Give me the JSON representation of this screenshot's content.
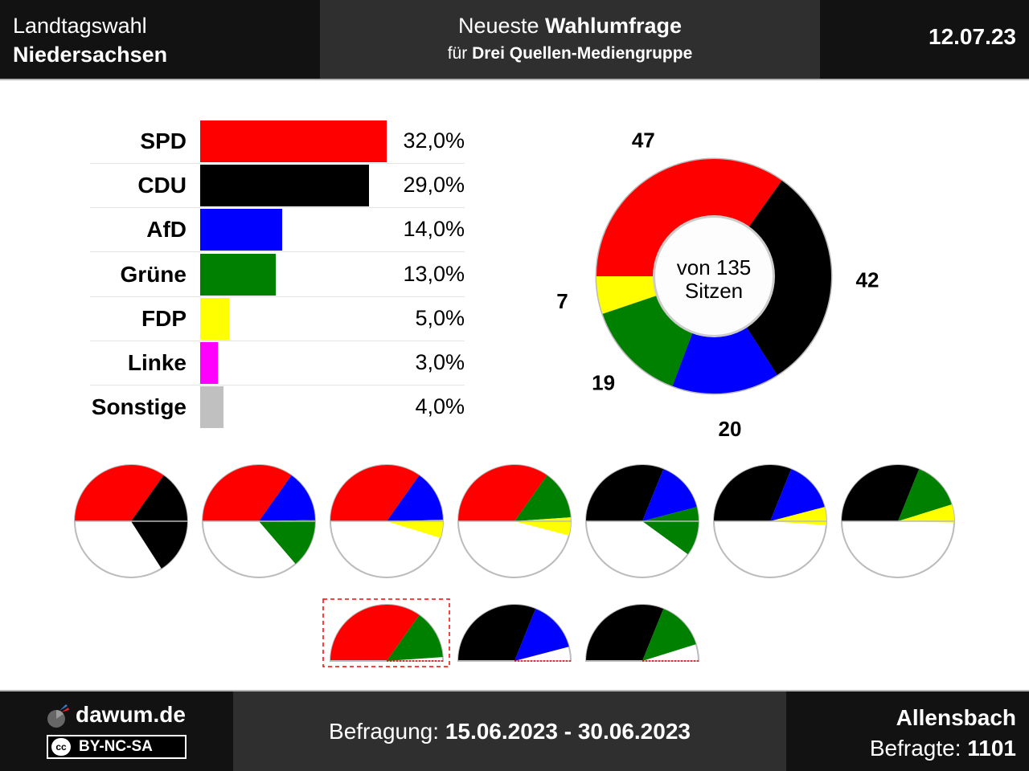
{
  "header": {
    "title_line1": "Landtagswahl",
    "title_line2": "Niedersachsen",
    "subtitle_prefix": "Neueste ",
    "subtitle_bold": "Wahlumfrage",
    "client_prefix": "für ",
    "client_name": "Drei Quellen-Mediengruppe",
    "date": "12.07.23"
  },
  "chart_data": [
    {
      "type": "bar",
      "orientation": "horizontal",
      "categories": [
        "SPD",
        "CDU",
        "AfD",
        "Grüne",
        "FDP",
        "Linke",
        "Sonstige"
      ],
      "values": [
        32.0,
        29.0,
        14.0,
        13.0,
        5.0,
        3.0,
        4.0
      ],
      "value_labels": [
        "32,0%",
        "29,0%",
        "14,0%",
        "13,0%",
        "5,0%",
        "3,0%",
        "4,0%"
      ],
      "colors": [
        "#ff0000",
        "#000000",
        "#0000ff",
        "#008000",
        "#ffff00",
        "#ff00ff",
        "#c0c0c0"
      ],
      "xlim": [
        0,
        32
      ]
    },
    {
      "type": "pie",
      "style": "donut",
      "center_label_line1": "von 135",
      "center_label_line2": "Sitzen",
      "slices": [
        {
          "party": "SPD",
          "seats": 47,
          "color": "#ff0000"
        },
        {
          "party": "CDU",
          "seats": 42,
          "color": "#000000"
        },
        {
          "party": "AfD",
          "seats": 20,
          "color": "#0000ff"
        },
        {
          "party": "Grüne",
          "seats": 19,
          "color": "#008000"
        },
        {
          "party": "FDP",
          "seats": 7,
          "color": "#ffff00"
        }
      ],
      "total_seats": 135
    },
    {
      "type": "pie",
      "style": "coalition-semicircles",
      "rows": [
        [
          {
            "parties": [
              "SPD",
              "CDU"
            ],
            "full": true
          },
          {
            "parties": [
              "SPD",
              "AfD",
              "Grüne"
            ],
            "full": true
          },
          {
            "parties": [
              "SPD",
              "AfD",
              "FDP"
            ],
            "full": true
          },
          {
            "parties": [
              "SPD",
              "Grüne",
              "FDP"
            ],
            "full": true
          },
          {
            "parties": [
              "CDU",
              "AfD",
              "Grüne"
            ],
            "full": true
          },
          {
            "parties": [
              "CDU",
              "AfD",
              "FDP"
            ],
            "full": true
          },
          {
            "parties": [
              "CDU",
              "Grüne",
              "FDP"
            ],
            "full": true
          }
        ],
        [
          {
            "parties": [
              "SPD",
              "Grüne"
            ],
            "full": false,
            "highlighted": true
          },
          {
            "parties": [
              "CDU",
              "AfD"
            ],
            "full": false,
            "highlighted": false
          },
          {
            "parties": [
              "CDU",
              "Grüne"
            ],
            "full": false,
            "highlighted": false
          }
        ]
      ]
    }
  ],
  "footer": {
    "site": "dawum.de",
    "license": "BY-NC-SA",
    "license_icon": "cc",
    "period_label": "Befragung: ",
    "period_value": "15.06.2023 - 30.06.2023",
    "institute": "Allensbach",
    "respondents_label": "Befragte: ",
    "respondents_value": "1101"
  }
}
